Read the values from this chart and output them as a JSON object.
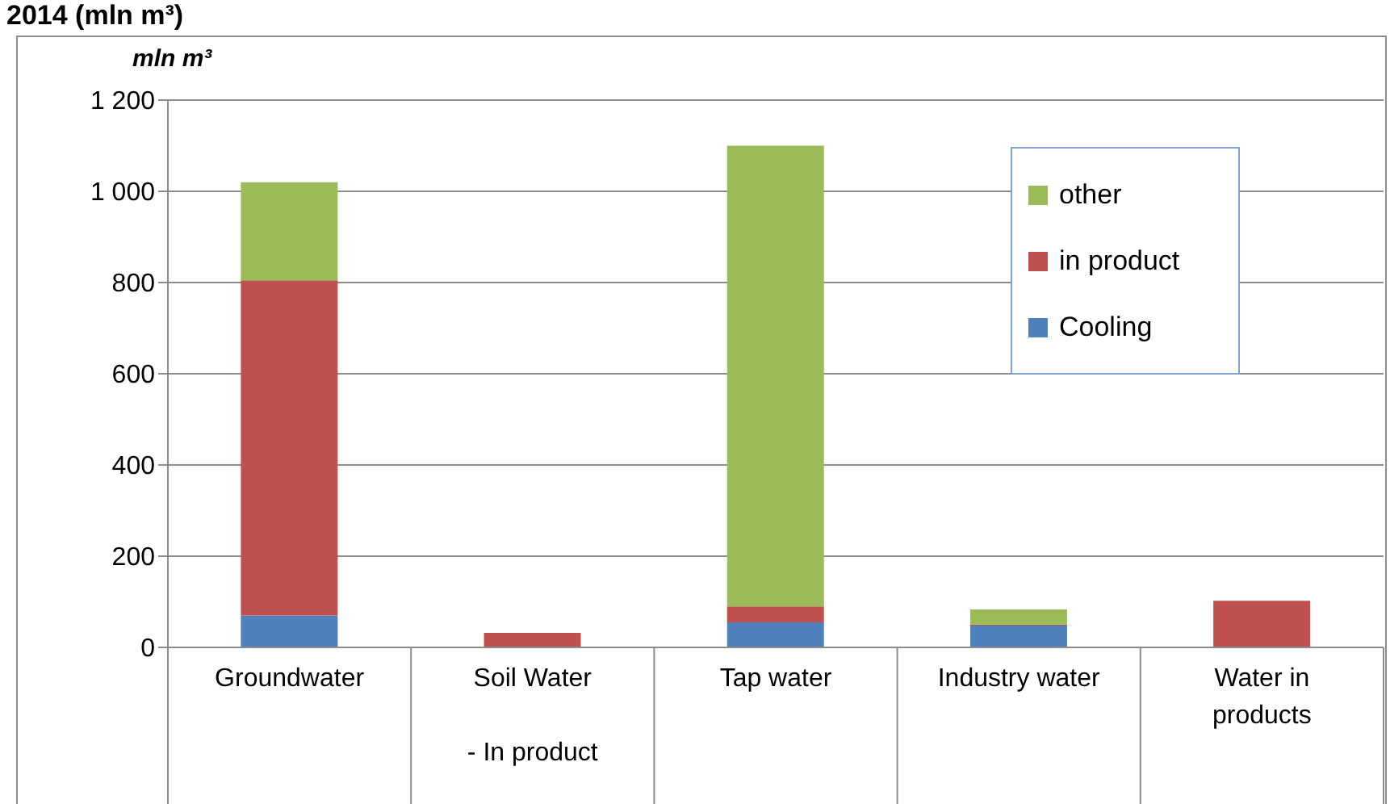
{
  "chart_data": {
    "type": "bar",
    "title": "2014 (mln m³)",
    "ylabel": "mln m³",
    "stacked": true,
    "categories": [
      "Groundwater",
      "Soil Water\n\n- In product",
      "Tap water",
      "Industry water",
      "Water in products"
    ],
    "series": [
      {
        "name": "Cooling",
        "color": "#4f81bd",
        "values": [
          70,
          0,
          55,
          48,
          0
        ]
      },
      {
        "name": "in product",
        "color": "#c0504d",
        "values": [
          735,
          32,
          35,
          2,
          102
        ]
      },
      {
        "name": "other",
        "color": "#9bbb59",
        "values": [
          215,
          0,
          1010,
          33,
          0
        ]
      }
    ],
    "ylim": [
      0,
      1200
    ],
    "yticks": [
      0,
      200,
      400,
      600,
      800,
      {
        "value": 1000,
        "label": "1 000"
      },
      {
        "value": 1200,
        "label": "1 200"
      }
    ],
    "grid": "y",
    "legend": "top right"
  }
}
